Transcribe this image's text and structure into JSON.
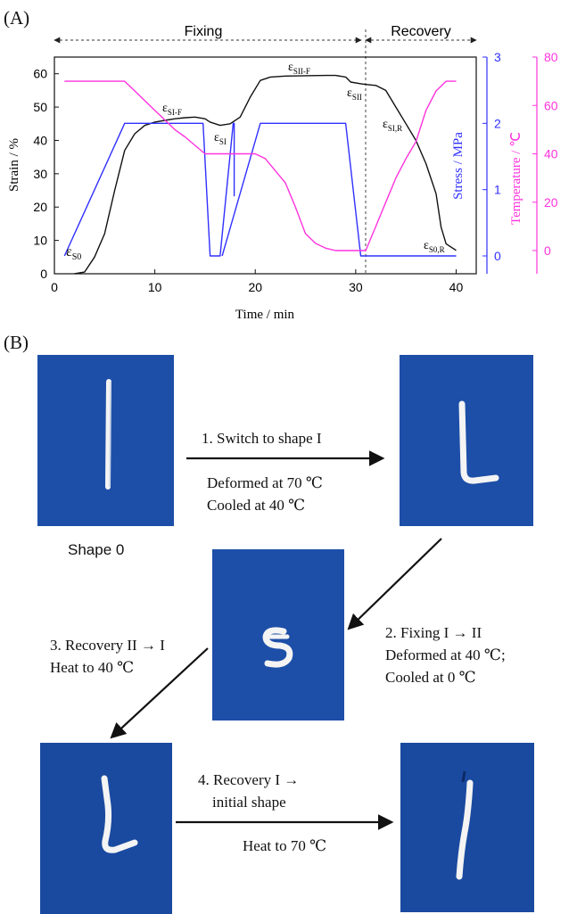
{
  "panel_a_label": "(A)",
  "panel_b_label": "(B)",
  "phases": {
    "fixing": "Fixing",
    "recovery": "Recovery"
  },
  "axes": {
    "x_label": "Time / min",
    "strain_label": "Strain / %",
    "stress_label": "Stress / MPa",
    "temp_label": "Temperature / ℃",
    "x_ticks": [
      "0",
      "10",
      "20",
      "30",
      "40"
    ],
    "strain_ticks": [
      "0",
      "10",
      "20",
      "30",
      "40",
      "50",
      "60"
    ],
    "stress_ticks": [
      "0",
      "1",
      "2",
      "3"
    ],
    "temp_ticks": [
      "0",
      "20",
      "40",
      "60",
      "80"
    ]
  },
  "annotations": {
    "s0": {
      "main": "ε",
      "sub": "S0"
    },
    "si_f": {
      "main": "ε",
      "sub": "SI-F"
    },
    "si": {
      "main": "ε",
      "sub": "SI"
    },
    "sii_f": {
      "main": "ε",
      "sub": "SII-F"
    },
    "sii": {
      "main": "ε",
      "sub": "SII"
    },
    "si_r": {
      "main": "ε",
      "sub": "SI,R"
    },
    "s0_r": {
      "main": "ε",
      "sub": "S0,R"
    }
  },
  "colors": {
    "strain": "#111111",
    "stress": "#3030ff",
    "temperature": "#ff33dd",
    "photo_bg": "#1d4fa8"
  },
  "chart_data": {
    "type": "line",
    "x": [],
    "xlim": [
      0,
      42
    ],
    "ylim": [
      0,
      65
    ],
    "y2lim": [
      0,
      3
    ],
    "y3lim": [
      -10,
      80
    ],
    "series": [
      {
        "axis": "strain",
        "points": [
          [
            2,
            0
          ],
          [
            3,
            0.5
          ],
          [
            4,
            5
          ],
          [
            5,
            12
          ],
          [
            6,
            25
          ],
          [
            7,
            37
          ],
          [
            8,
            42
          ],
          [
            9,
            44.5
          ],
          [
            10,
            45.5
          ],
          [
            11,
            46
          ],
          [
            12,
            46.5
          ],
          [
            13,
            46.8
          ],
          [
            14,
            47
          ],
          [
            15,
            46.5
          ],
          [
            15.5,
            45.5
          ],
          [
            16.5,
            44.5
          ],
          [
            17.5,
            45
          ],
          [
            18.5,
            47
          ],
          [
            19.5,
            53
          ],
          [
            20.5,
            58
          ],
          [
            21.5,
            59
          ],
          [
            23,
            59.3
          ],
          [
            25,
            59.4
          ],
          [
            27,
            59.5
          ],
          [
            28,
            59.5
          ],
          [
            29,
            59
          ],
          [
            29.5,
            57.5
          ],
          [
            30.5,
            57
          ],
          [
            31,
            56.8
          ],
          [
            32,
            56.5
          ],
          [
            33,
            55
          ],
          [
            34,
            50
          ],
          [
            35,
            45
          ],
          [
            36,
            40
          ],
          [
            37,
            33
          ],
          [
            38,
            24
          ],
          [
            38.5,
            14
          ],
          [
            39,
            9
          ],
          [
            40,
            7
          ]
        ]
      },
      {
        "axis": "stress",
        "points": [
          [
            1,
            0
          ],
          [
            7,
            2
          ],
          [
            14.8,
            2
          ],
          [
            15.5,
            0
          ],
          [
            16.5,
            0
          ],
          [
            17.8,
            2
          ],
          [
            17.9,
            2
          ],
          [
            17.9,
            2
          ],
          [
            17.9,
            0.9
          ],
          [
            17.9,
            0.9
          ],
          [
            17.9,
            0.9
          ]
        ]
      },
      {
        "axis": "stress",
        "points": [
          [
            16.7,
            0
          ],
          [
            20.5,
            2
          ],
          [
            29,
            2
          ],
          [
            30.5,
            0
          ],
          [
            40,
            0
          ]
        ]
      },
      {
        "axis": "temperature",
        "points": [
          [
            1,
            70
          ],
          [
            7,
            70
          ],
          [
            8,
            66
          ],
          [
            10,
            58
          ],
          [
            12,
            50
          ],
          [
            13,
            47
          ],
          [
            15,
            40
          ],
          [
            20,
            40
          ],
          [
            21,
            38
          ],
          [
            23,
            28
          ],
          [
            24,
            18
          ],
          [
            25,
            7
          ],
          [
            26,
            3
          ],
          [
            27,
            1
          ],
          [
            28,
            0
          ],
          [
            31,
            0
          ],
          [
            32,
            10
          ],
          [
            33,
            20
          ],
          [
            34,
            30
          ],
          [
            35,
            38
          ],
          [
            36,
            45
          ],
          [
            37,
            58
          ],
          [
            38,
            66
          ],
          [
            39,
            70
          ],
          [
            40,
            70
          ]
        ]
      }
    ]
  },
  "photos": {
    "shape0_caption": "Shape 0"
  },
  "steps": {
    "step1_title": "1. Switch to shape I",
    "step1_line1": "Deformed at 70 ℃",
    "step1_line2": "Cooled at 40 ℃",
    "step2_title": "2. Fixing I → II",
    "step2_line1": "Deformed at 40 ℃;",
    "step2_line2": "Cooled at 0 ℃",
    "step3_title": "3. Recovery II → I",
    "step3_line1": "Heat to 40 ℃",
    "step4_title": "4. Recovery I →",
    "step4_line1": "initial  shape",
    "step4_line2": "Heat to 70 ℃"
  }
}
